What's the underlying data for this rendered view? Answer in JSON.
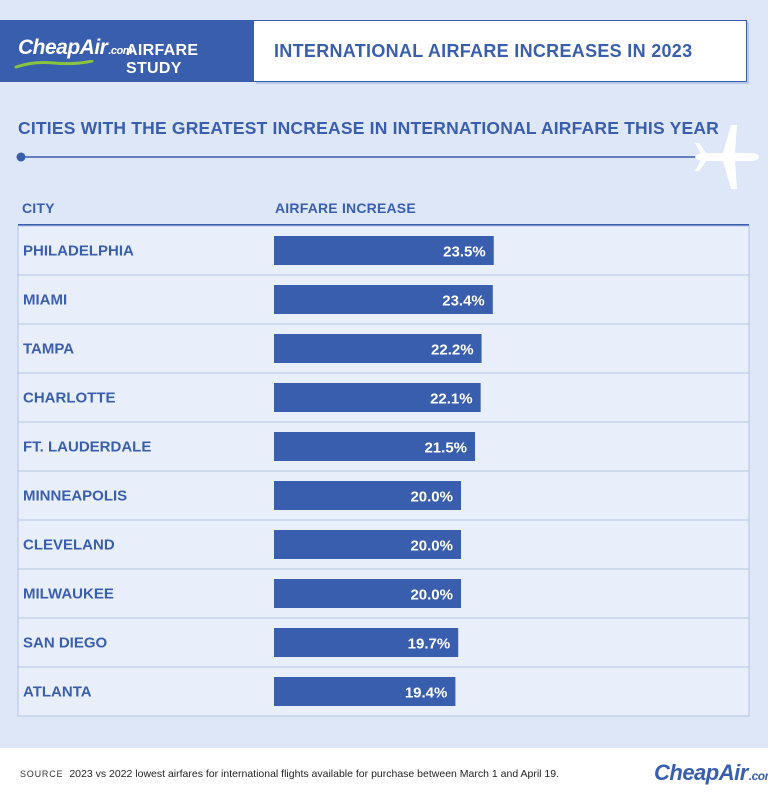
{
  "brand": {
    "logo_main": "CheapAir",
    "logo_suffix": ".com",
    "study_label": "AIRFARE STUDY"
  },
  "header": {
    "title": "INTERNATIONAL AIRFARE INCREASES IN 2023"
  },
  "colors": {
    "accent": "#3a5eae",
    "background": "#dde7f8",
    "row_background": "#e9effa",
    "swoosh": "#8ac43f"
  },
  "icons": [
    "airplane-icon",
    "route-start-dot-icon",
    "logo-swoosh-icon"
  ],
  "chart_data": {
    "type": "bar",
    "orientation": "horizontal",
    "title": "CITIES WITH THE GREATEST INCREASE IN INTERNATIONAL AIRFARE THIS YEAR",
    "category_header": "CITY",
    "value_header": "AIRFARE INCREASE",
    "unit": "%",
    "xlim": [
      0,
      40
    ],
    "categories": [
      "PHILADELPHIA",
      "MIAMI",
      "TAMPA",
      "CHARLOTTE",
      "FT. LAUDERDALE",
      "MINNEAPOLIS",
      "CLEVELAND",
      "MILWAUKEE",
      "SAN DIEGO",
      "ATLANTA"
    ],
    "values": [
      23.5,
      23.4,
      22.2,
      22.1,
      21.5,
      20.0,
      20.0,
      20.0,
      19.7,
      19.4
    ],
    "value_labels": [
      "23.5%",
      "23.4%",
      "22.2%",
      "22.1%",
      "21.5%",
      "20.0%",
      "20.0%",
      "20.0%",
      "19.7%",
      "19.4%"
    ]
  },
  "footer": {
    "source_label": "SOURCE",
    "source_text": "2023 vs 2022 lowest airfares for international flights available for purchase between March 1 and April 19.",
    "logo_main": "CheapAir",
    "logo_suffix": ".com"
  }
}
